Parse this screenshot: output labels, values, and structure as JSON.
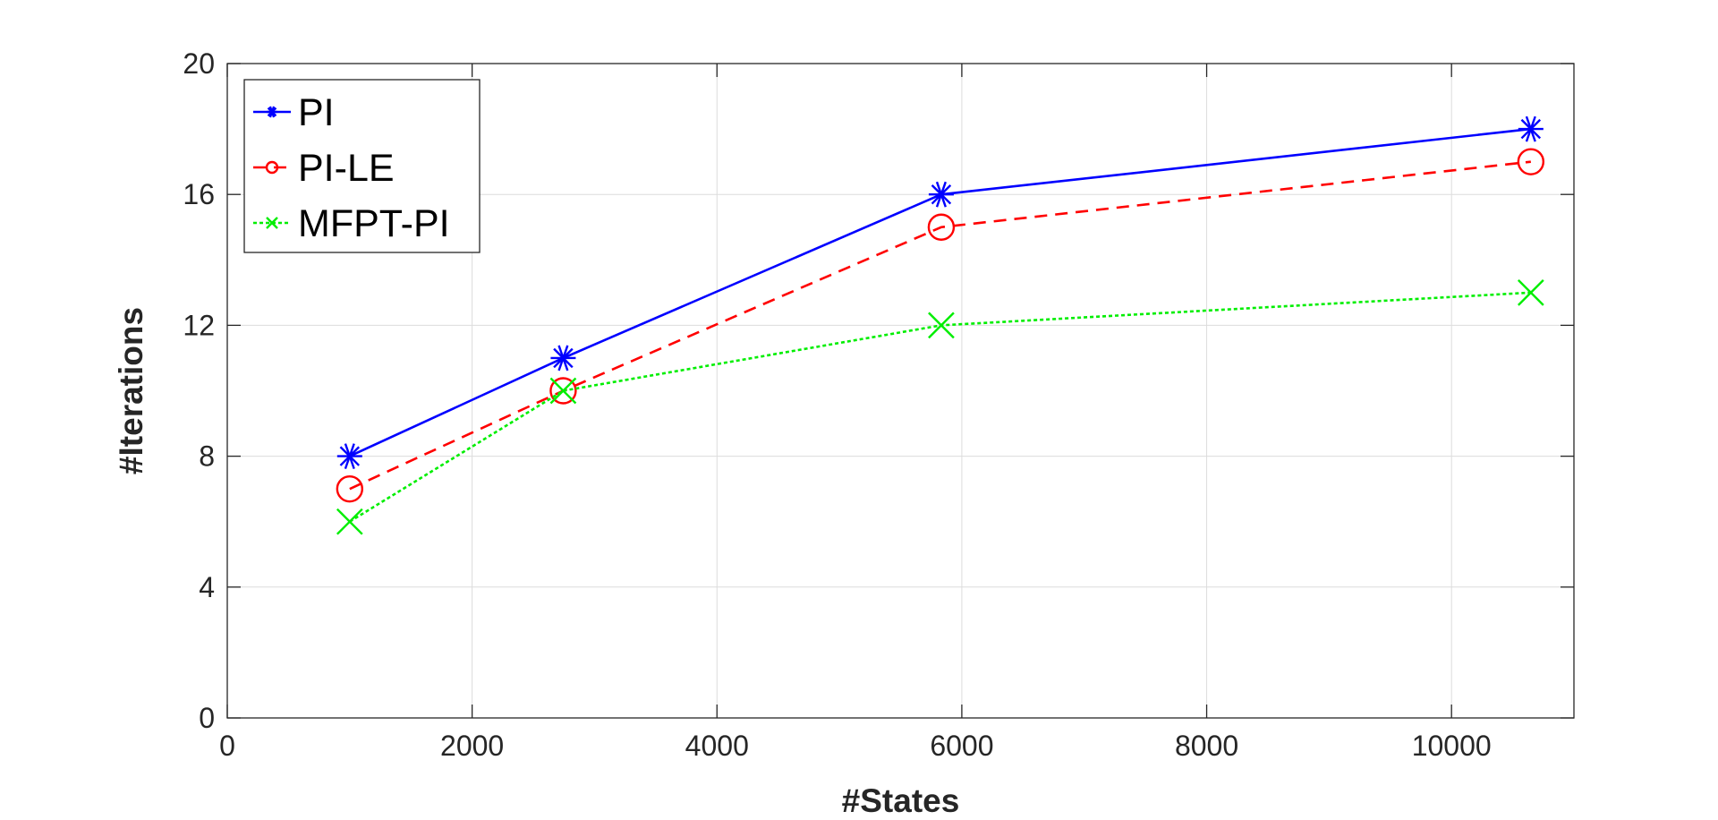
{
  "chart_data": {
    "type": "line",
    "title": "",
    "xlabel": "#States",
    "ylabel": "#Iterations",
    "xlim": [
      0,
      11000
    ],
    "ylim": [
      0,
      20
    ],
    "xticks": [
      0,
      2000,
      4000,
      6000,
      8000,
      10000
    ],
    "yticks": [
      0,
      4,
      8,
      12,
      16,
      20
    ],
    "xtick_labels": [
      "0",
      "2000",
      "4000",
      "6000",
      "8000",
      "10000"
    ],
    "ytick_labels": [
      "0",
      "4",
      "8",
      "12",
      "16",
      "20"
    ],
    "grid": true,
    "legend_position": "top-left",
    "x": [
      1000,
      2744,
      5832,
      10648
    ],
    "series": [
      {
        "name": "PI",
        "values": [
          8,
          11,
          16,
          18
        ],
        "color": "#0000ff",
        "line_style": "solid",
        "marker": "asterisk"
      },
      {
        "name": "PI-LE",
        "values": [
          7,
          10,
          15,
          17
        ],
        "color": "#ff0000",
        "line_style": "dashed",
        "marker": "circle"
      },
      {
        "name": "MFPT-PI",
        "values": [
          6,
          10,
          12,
          13
        ],
        "color": "#00ee00",
        "line_style": "dotted",
        "marker": "x"
      }
    ]
  }
}
